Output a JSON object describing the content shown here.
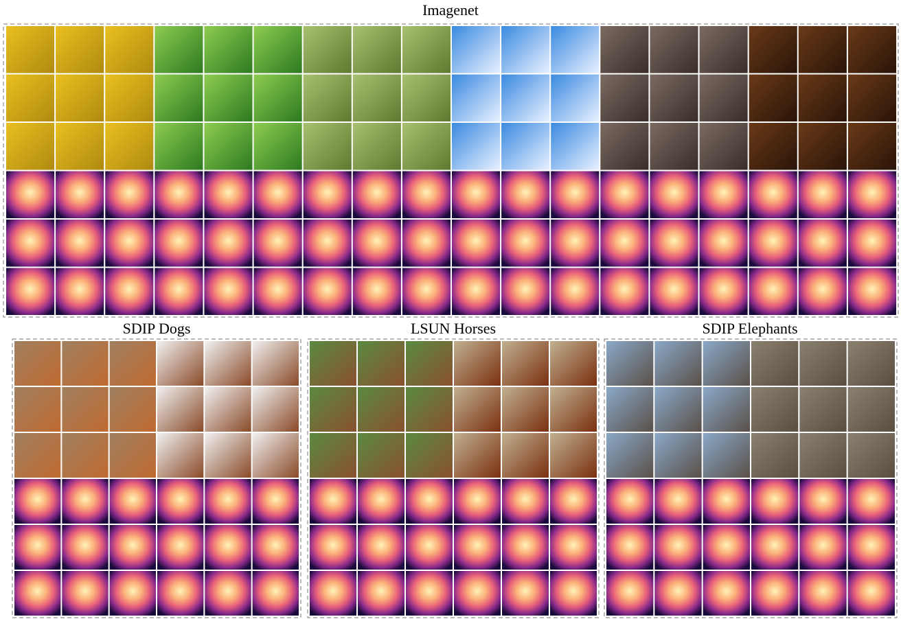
{
  "panels": [
    {
      "title": "Imagenet"
    },
    {
      "title": "SDIP Dogs"
    },
    {
      "title": "LSUN Horses"
    },
    {
      "title": "SDIP Elephants"
    }
  ]
}
